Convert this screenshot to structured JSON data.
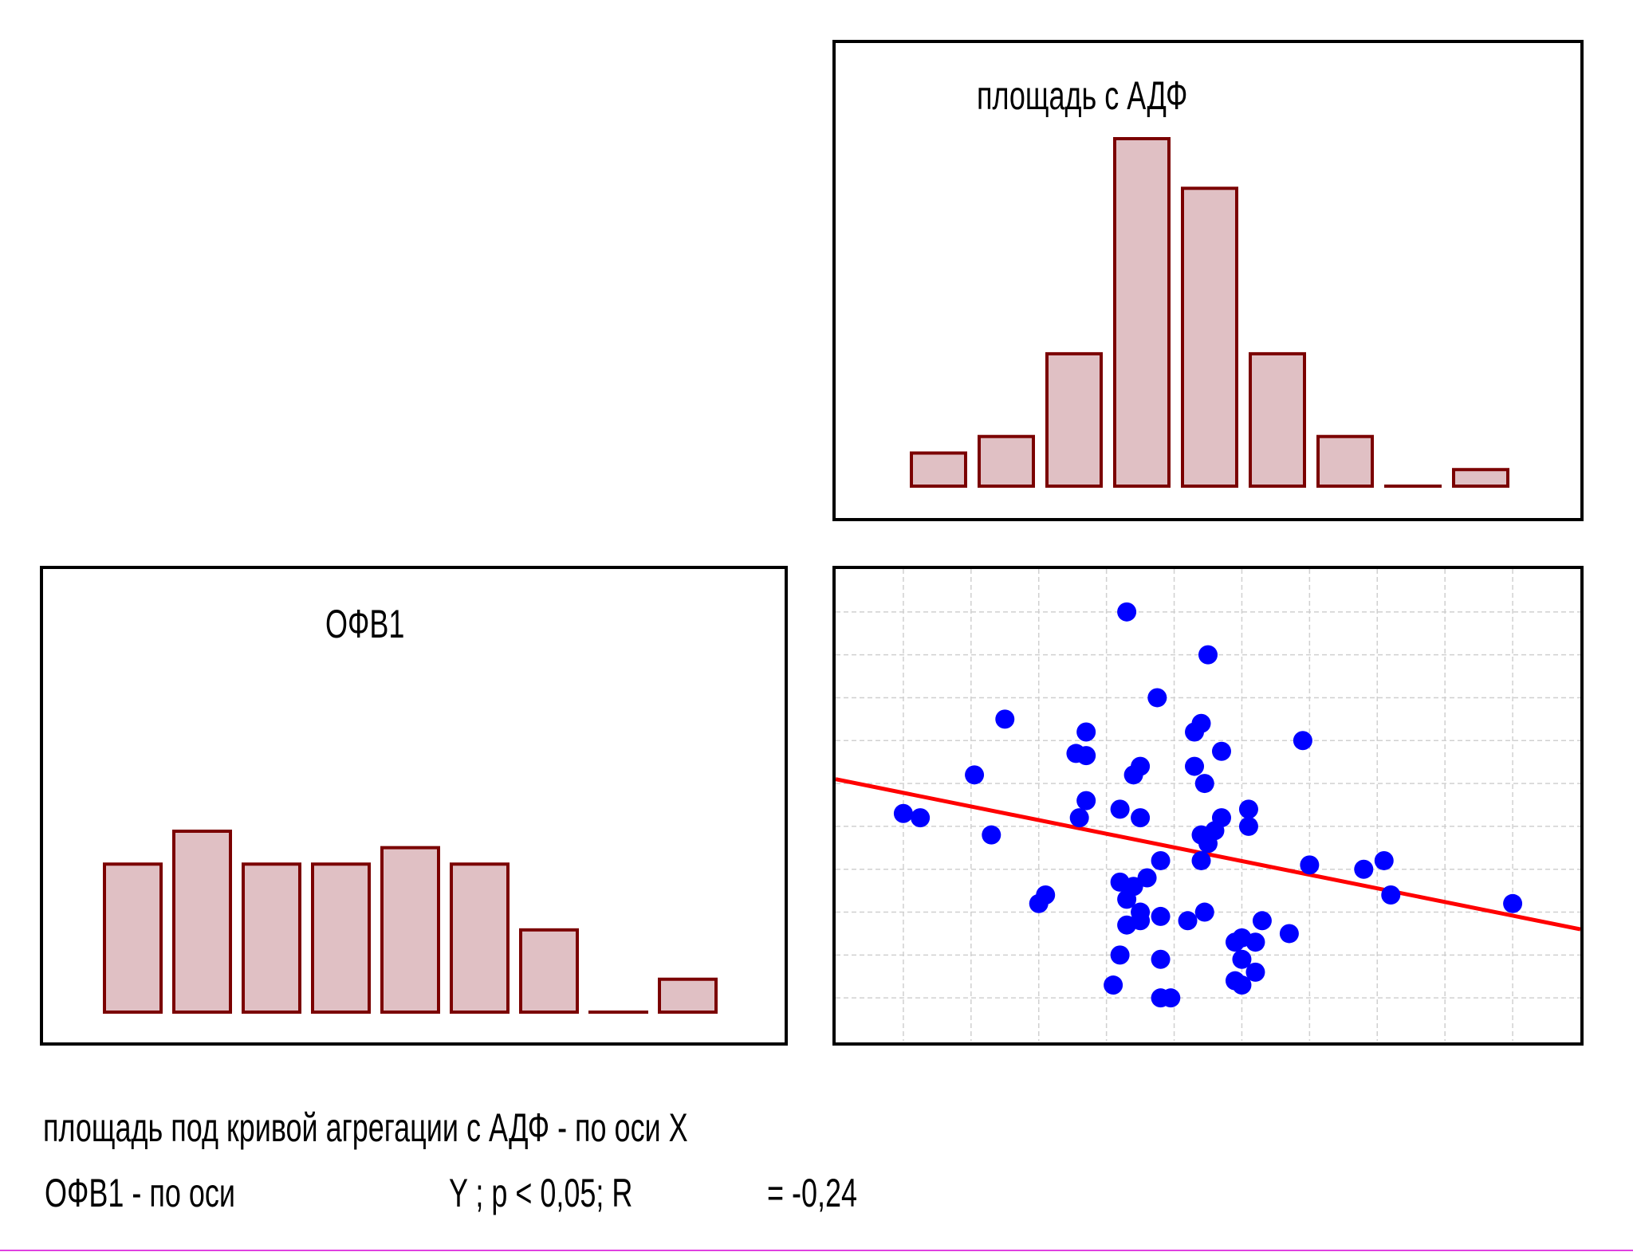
{
  "chart_data": [
    {
      "type": "bar",
      "title": "площадь с АДФ",
      "values": [
        2,
        3,
        8,
        21,
        18,
        8,
        3,
        0,
        1
      ],
      "colors": {
        "fill": "#e0c0c4",
        "stroke": "#7b0000"
      }
    },
    {
      "type": "bar",
      "title": "ОФВ1",
      "values": [
        9,
        11,
        9,
        9,
        10,
        9,
        5,
        0,
        2
      ],
      "colors": {
        "fill": "#e0c0c4",
        "stroke": "#7b0000"
      }
    },
    {
      "type": "scatter",
      "grid": true,
      "xlim": [
        0,
        11
      ],
      "ylim": [
        0,
        11
      ],
      "points": [
        [
          4.3,
          10.0
        ],
        [
          5.5,
          9.0
        ],
        [
          4.75,
          8.0
        ],
        [
          2.5,
          7.5
        ],
        [
          5.4,
          7.4
        ],
        [
          5.3,
          7.2
        ],
        [
          3.7,
          7.2
        ],
        [
          3.55,
          6.7
        ],
        [
          3.7,
          6.65
        ],
        [
          5.7,
          6.75
        ],
        [
          6.9,
          7.0
        ],
        [
          4.5,
          6.4
        ],
        [
          5.3,
          6.4
        ],
        [
          4.4,
          6.2
        ],
        [
          2.05,
          6.2
        ],
        [
          5.45,
          6.0
        ],
        [
          3.7,
          5.6
        ],
        [
          4.2,
          5.4
        ],
        [
          6.1,
          5.4
        ],
        [
          1.0,
          5.3
        ],
        [
          1.25,
          5.2
        ],
        [
          3.6,
          5.2
        ],
        [
          4.5,
          5.2
        ],
        [
          5.7,
          5.2
        ],
        [
          6.1,
          5.0
        ],
        [
          2.3,
          4.8
        ],
        [
          5.6,
          4.9
        ],
        [
          5.4,
          4.8
        ],
        [
          5.5,
          4.6
        ],
        [
          4.8,
          4.2
        ],
        [
          5.4,
          4.2
        ],
        [
          7.0,
          4.1
        ],
        [
          7.8,
          4.0
        ],
        [
          8.1,
          4.2
        ],
        [
          4.6,
          3.8
        ],
        [
          4.2,
          3.7
        ],
        [
          4.4,
          3.6
        ],
        [
          4.3,
          3.3
        ],
        [
          3.0,
          3.2
        ],
        [
          3.1,
          3.4
        ],
        [
          8.2,
          3.4
        ],
        [
          10.0,
          3.2
        ],
        [
          4.5,
          3.0
        ],
        [
          4.5,
          2.8
        ],
        [
          4.8,
          2.9
        ],
        [
          5.2,
          2.8
        ],
        [
          5.45,
          3.0
        ],
        [
          6.3,
          2.8
        ],
        [
          4.3,
          2.7
        ],
        [
          6.0,
          2.4
        ],
        [
          5.9,
          2.3
        ],
        [
          6.2,
          2.3
        ],
        [
          6.7,
          2.5
        ],
        [
          4.2,
          2.0
        ],
        [
          4.8,
          1.9
        ],
        [
          6.0,
          1.9
        ],
        [
          6.2,
          1.6
        ],
        [
          5.9,
          1.4
        ],
        [
          4.1,
          1.3
        ],
        [
          6.0,
          1.3
        ],
        [
          4.8,
          1.0
        ],
        [
          4.95,
          1.0
        ]
      ],
      "trend_line": {
        "x": [
          0,
          11
        ],
        "y": [
          6.1,
          2.6
        ]
      },
      "colors": {
        "points": "#0000ff",
        "line": "#ff0000"
      }
    }
  ],
  "caption": {
    "line1": "площадь под кривой агрегации с АДФ - по оси Х",
    "line2_part1": "ОФВ1 - по оси",
    "line2_part2": "Y  ;   p  <  0,05; R",
    "line2_part3": "= -0,24"
  }
}
